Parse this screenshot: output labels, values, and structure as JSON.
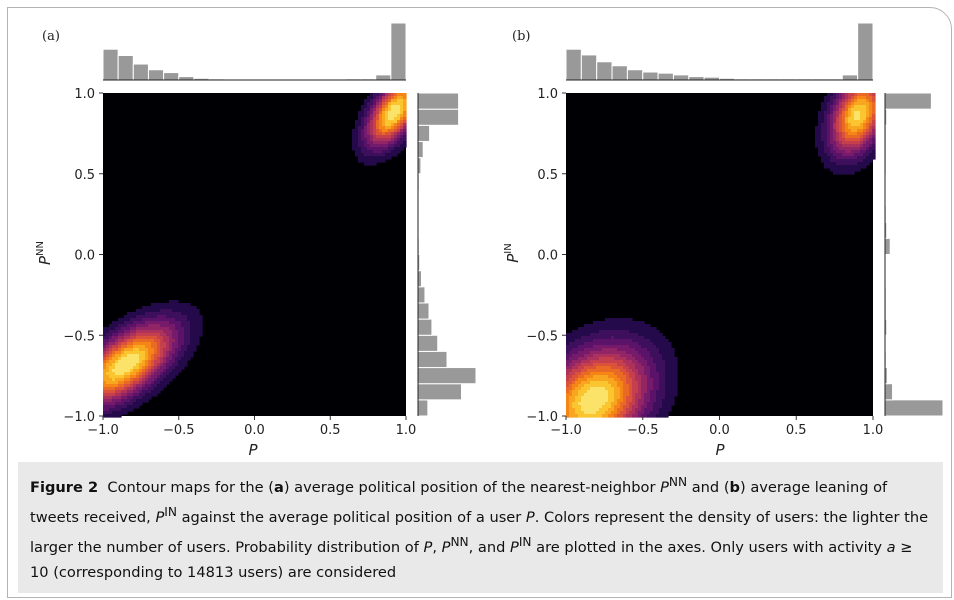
{
  "chart_data": [
    {
      "type": "heatmap",
      "panel_label": "(a)",
      "xlabel": "P",
      "ylabel": "P^NN",
      "ylabel_main": "P",
      "ylabel_sup": "NN",
      "xlim": [
        -1.0,
        1.0
      ],
      "ylim": [
        -1.0,
        1.0
      ],
      "x_ticks": [
        "−1.0",
        "−0.5",
        "0.0",
        "0.5",
        "1.0"
      ],
      "x_tick_values": [
        -1.0,
        -0.5,
        0.0,
        0.5,
        1.0
      ],
      "y_ticks": [
        "−1.0",
        "−0.5",
        "0.0",
        "0.5",
        "1.0"
      ],
      "y_tick_values": [
        -1.0,
        -0.5,
        0.0,
        0.5,
        1.0
      ],
      "colormap": "inferno",
      "density_peaks": [
        {
          "x": -0.85,
          "y": -0.68,
          "height": 1.0,
          "sx": 0.22,
          "sy": 0.17,
          "rho": 0.62
        },
        {
          "x": 0.92,
          "y": 0.88,
          "height": 1.0,
          "sx": 0.12,
          "sy": 0.14,
          "rho": 0.55
        }
      ],
      "marginal_x": {
        "bin_edges": [
          -1.0,
          -0.9,
          -0.8,
          -0.7,
          -0.6,
          -0.5,
          -0.4,
          -0.3,
          -0.2,
          -0.1,
          0.0,
          0.1,
          0.2,
          0.3,
          0.4,
          0.5,
          0.6,
          0.7,
          0.8,
          0.9,
          1.0
        ],
        "counts": [
          0.54,
          0.43,
          0.28,
          0.18,
          0.13,
          0.06,
          0.03,
          0.02,
          0.01,
          0.01,
          0.01,
          0.01,
          0.01,
          0.01,
          0.01,
          0.01,
          0.02,
          0.02,
          0.09,
          1.0
        ]
      },
      "marginal_y": {
        "bin_edges": [
          -1.0,
          -0.9,
          -0.8,
          -0.7,
          -0.6,
          -0.5,
          -0.4,
          -0.3,
          -0.2,
          -0.1,
          0.0,
          0.1,
          0.2,
          0.3,
          0.4,
          0.5,
          0.6,
          0.7,
          0.8,
          0.9,
          1.0
        ],
        "counts": [
          0.17,
          0.75,
          1.0,
          0.5,
          0.34,
          0.24,
          0.19,
          0.12,
          0.06,
          0.03,
          0.02,
          0.01,
          0.01,
          0.01,
          0.02,
          0.05,
          0.09,
          0.2,
          0.7,
          0.7
        ]
      }
    },
    {
      "type": "heatmap",
      "panel_label": "(b)",
      "xlabel": "P",
      "ylabel": "P^IN",
      "ylabel_main": "P",
      "ylabel_sup": "IN",
      "xlim": [
        -1.0,
        1.0
      ],
      "ylim": [
        -1.0,
        1.0
      ],
      "x_ticks": [
        "−1.0",
        "−0.5",
        "0.0",
        "0.5",
        "1.0"
      ],
      "x_tick_values": [
        -1.0,
        -0.5,
        0.0,
        0.5,
        1.0
      ],
      "y_ticks": [
        "−1.0",
        "−0.5",
        "0.0",
        "0.5",
        "1.0"
      ],
      "y_tick_values": [
        -1.0,
        -0.5,
        0.0,
        0.5,
        1.0
      ],
      "colormap": "inferno",
      "density_peaks": [
        {
          "x": -0.82,
          "y": -0.9,
          "height": 1.0,
          "sx": 0.24,
          "sy": 0.22,
          "rho": 0.3
        },
        {
          "x": 0.9,
          "y": 0.86,
          "height": 0.95,
          "sx": 0.12,
          "sy": 0.16,
          "rho": 0.35
        }
      ],
      "marginal_x": {
        "bin_edges": [
          -1.0,
          -0.9,
          -0.8,
          -0.7,
          -0.6,
          -0.5,
          -0.4,
          -0.3,
          -0.2,
          -0.1,
          0.0,
          0.1,
          0.2,
          0.3,
          0.4,
          0.5,
          0.6,
          0.7,
          0.8,
          0.9,
          1.0
        ],
        "counts": [
          0.54,
          0.44,
          0.32,
          0.25,
          0.18,
          0.14,
          0.12,
          0.09,
          0.06,
          0.05,
          0.03,
          0.02,
          0.02,
          0.02,
          0.02,
          0.02,
          0.02,
          0.02,
          0.09,
          1.0
        ]
      },
      "marginal_y": {
        "bin_edges": [
          -1.0,
          -0.9,
          -0.8,
          -0.7,
          -0.6,
          -0.5,
          -0.4,
          -0.3,
          -0.2,
          -0.1,
          0.0,
          0.1,
          0.2,
          0.3,
          0.4,
          0.5,
          0.6,
          0.7,
          0.8,
          0.9,
          1.0
        ],
        "counts": [
          1.0,
          0.13,
          0.04,
          0.02,
          0.01,
          0.03,
          0.02,
          0.02,
          0.01,
          0.01,
          0.09,
          0.03,
          0.02,
          0.01,
          0.01,
          0.02,
          0.02,
          0.02,
          0.03,
          0.8
        ]
      }
    }
  ],
  "caption": {
    "figure_label": "Figure 2",
    "p1": "Contour maps for the (",
    "a": "a",
    "p2": ") average political position of the nearest-neighbor ",
    "P1": "P",
    "NN1": "NN",
    "p3": " and (",
    "b": "b",
    "p4": ") average leaning of tweets received, ",
    "P2": "P",
    "IN1": "IN",
    "p5": " against the average political position of a user ",
    "P3": "P",
    "p6": ". Colors represent the density of users: the lighter the larger the number of users. Probability distribution of ",
    "P4": "P",
    "p7": ", ",
    "P5": "P",
    "NN2": "NN",
    "p8": ", and ",
    "P6": "P",
    "IN2": "IN",
    "p9": " are plotted in the axes. Only users with activity ",
    "a_var": "a",
    "p10": " ≥ 10 (corresponding to 14813 users) are considered"
  },
  "colors": {
    "histogram_bar": "#999999",
    "histogram_edge": "#ffffff",
    "background_density": "#000004",
    "contour_line": "#ffffff",
    "caption_background": "#e9e9e9",
    "frame": "#b3b3b3"
  }
}
